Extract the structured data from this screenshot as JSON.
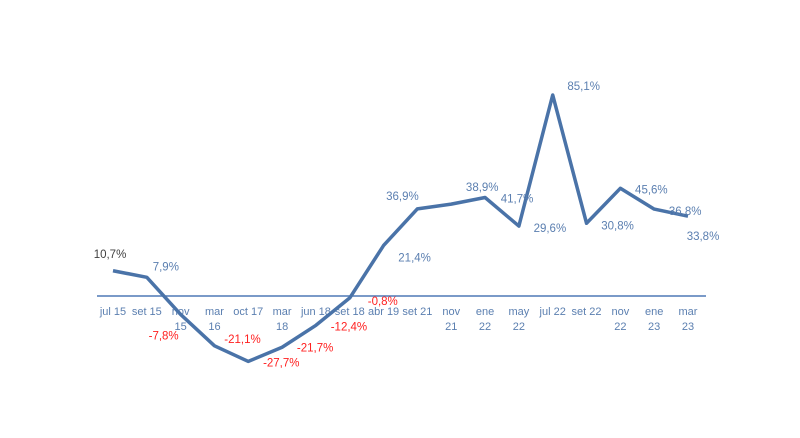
{
  "chart_data": {
    "type": "line",
    "title": "",
    "xlabel": "",
    "ylabel": "",
    "categories": [
      [
        "jul 15"
      ],
      [
        "set 15"
      ],
      [
        "nov",
        "15"
      ],
      [
        "mar",
        "16"
      ],
      [
        "oct 17"
      ],
      [
        "mar",
        "18"
      ],
      [
        "jun 18"
      ],
      [
        "set 18"
      ],
      [
        "abr 19"
      ],
      [
        "set 21"
      ],
      [
        "nov",
        "21"
      ],
      [
        "ene",
        "22"
      ],
      [
        "may",
        "22"
      ],
      [
        "jul 22"
      ],
      [
        "set 22"
      ],
      [
        "nov",
        "22"
      ],
      [
        "ene",
        "23"
      ],
      [
        "mar",
        "23"
      ]
    ],
    "values": [
      10.7,
      7.9,
      -7.8,
      -21.1,
      -27.7,
      -21.7,
      -12.4,
      -0.8,
      21.4,
      36.9,
      38.9,
      41.7,
      29.6,
      85.1,
      30.8,
      45.6,
      36.8,
      33.8
    ],
    "data_labels": [
      "10,7%",
      "7,9%",
      "-7,8%",
      "-21,1%",
      "-27,7%",
      "-21,7%",
      "-12,4%",
      "-0,8%",
      "21,4%",
      "36,9%",
      "38,9%",
      "41,7%",
      "29,6%",
      "85,1%",
      "30,8%",
      "45,6%",
      "36,8%",
      "33,8%"
    ],
    "grid": false,
    "legend": "none",
    "colors": {
      "line": "#4a73a8",
      "positive_label": "#5b7fb0",
      "negative_label": "#ff2020",
      "first_label": "#404040",
      "axis": "#4f79b5",
      "tick_label": "#5b7fb0"
    }
  }
}
